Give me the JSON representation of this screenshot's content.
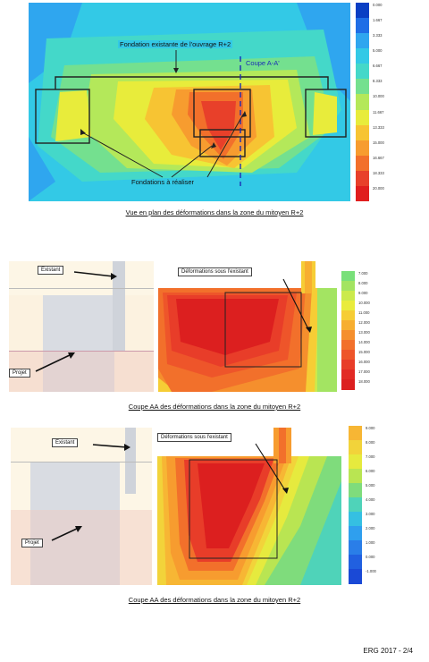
{
  "figure1": {
    "label_fondation": "Fondation existante de l'ouvrage R+2",
    "label_coupe": "Coupe A-A'",
    "label_fondations": "Fondations à réaliser",
    "caption": "Vue en plan des déformations dans la zone du mitoyen R+2",
    "legend_values": [
      "0.000",
      "1.667",
      "3.333",
      "5.000",
      "6.667",
      "8.333",
      "10.000",
      "11.667",
      "13.333",
      "15.000",
      "16.667",
      "18.333",
      "20.000"
    ],
    "legend_colors": [
      "#0a3fc4",
      "#1f6ee6",
      "#2fa6ef",
      "#33c9e6",
      "#44d8c9",
      "#74e08f",
      "#b4e85a",
      "#e8ec3b",
      "#f7c433",
      "#f79c2f",
      "#f2702b",
      "#e8402a",
      "#e01e1e"
    ]
  },
  "figure2": {
    "label_existant": "Existant",
    "label_deformations": "Déformations sous l'existant",
    "label_projet": "Projet",
    "caption": "Coupe AA des déformations dans la zone du mitoyen R+2",
    "legend_values": [
      "7.000",
      "8.000",
      "9.000",
      "10.000",
      "11.000",
      "12.000",
      "13.000",
      "14.000",
      "15.000",
      "16.000",
      "17.000",
      "18.000"
    ],
    "legend_colors": [
      "#79e07a",
      "#a3e462",
      "#cbea4c",
      "#e9ec3c",
      "#f6cd35",
      "#f7ae30",
      "#f58f2d",
      "#f2702b",
      "#ee552a",
      "#e83d29",
      "#e22a25",
      "#dc1f1f"
    ]
  },
  "figure3": {
    "label_existant": "Existant",
    "label_deformations": "Déformations sous l'existant",
    "label_projet": "Projet",
    "caption": "Coupe AA des déformations dans la zone du mitoyen R+2",
    "legend_values": [
      "9.000",
      "8.000",
      "7.000",
      "6.000",
      "5.000",
      "4.000",
      "3.000",
      "2.000",
      "1.000",
      "0.000",
      "-1.000"
    ],
    "legend_colors": [
      "#f7b634",
      "#f2d33a",
      "#e6ea3e",
      "#b9e552",
      "#7fdc7c",
      "#4fd3b9",
      "#35c0e2",
      "#2f9fee",
      "#2a7ee8",
      "#2160e0",
      "#1a49d6"
    ]
  },
  "footer": "ERG 2017 - 2/4"
}
